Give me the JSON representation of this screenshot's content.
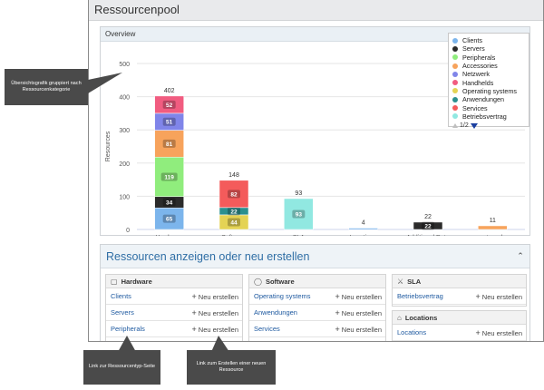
{
  "window": {
    "title": "Ressourcenpool"
  },
  "overview": {
    "title": "Overview"
  },
  "chart_data": {
    "type": "bar",
    "stacked": true,
    "ylabel": "Resources",
    "ylim": [
      0,
      500
    ],
    "yticks": [
      0,
      100,
      200,
      300,
      400,
      500
    ],
    "grid": true,
    "legend_position": "top-right",
    "categories": [
      "Hardware",
      "Software",
      "SLA",
      "Locations",
      "Additional Data",
      "externals"
    ],
    "totals": [
      402,
      148,
      93,
      4,
      22,
      11
    ],
    "series": [
      {
        "name": "Clients",
        "color": "#7cb5ec",
        "values": [
          65,
          0,
          0,
          0,
          0,
          0
        ]
      },
      {
        "name": "Servers",
        "color": "#2b2b2b",
        "values": [
          34,
          0,
          0,
          0,
          22,
          0
        ]
      },
      {
        "name": "Peripherals",
        "color": "#90ed7d",
        "values": [
          119,
          0,
          0,
          0,
          0,
          0
        ]
      },
      {
        "name": "Accessories",
        "color": "#f7a35c",
        "values": [
          81,
          0,
          0,
          0,
          0,
          11
        ]
      },
      {
        "name": "Netzwerk",
        "color": "#8085e9",
        "values": [
          51,
          0,
          0,
          0,
          0,
          0
        ]
      },
      {
        "name": "Handhelds",
        "color": "#f15c80",
        "values": [
          52,
          0,
          0,
          0,
          0,
          0
        ]
      },
      {
        "name": "Operating systems",
        "color": "#e4d354",
        "values": [
          0,
          44,
          0,
          0,
          0,
          0
        ]
      },
      {
        "name": "Anwendungen",
        "color": "#2b908f",
        "values": [
          0,
          22,
          0,
          0,
          0,
          0
        ]
      },
      {
        "name": "Services",
        "color": "#f45b5b",
        "values": [
          0,
          82,
          0,
          0,
          0,
          0
        ]
      },
      {
        "name": "Betriebsvertrag",
        "color": "#91e8e1",
        "values": [
          0,
          0,
          93,
          0,
          0,
          0
        ]
      },
      {
        "name": "",
        "color": "#7cb5ec",
        "values": [
          0,
          0,
          0,
          4,
          0,
          0
        ]
      }
    ],
    "segment_labels": [
      [
        "65",
        "34",
        "119",
        "81",
        "51",
        "52"
      ],
      [
        "44",
        "22",
        "82"
      ],
      [
        "93"
      ],
      [],
      [
        "22"
      ],
      []
    ]
  },
  "legend": {
    "items": [
      {
        "label": "Clients",
        "color": "#7cb5ec"
      },
      {
        "label": "Servers",
        "color": "#2b2b2b"
      },
      {
        "label": "Peripherals",
        "color": "#90ed7d"
      },
      {
        "label": "Accessories",
        "color": "#f7a35c"
      },
      {
        "label": "Netzwerk",
        "color": "#8085e9"
      },
      {
        "label": "Handhelds",
        "color": "#f15c80"
      },
      {
        "label": "Operating systems",
        "color": "#e4d354"
      },
      {
        "label": "Anwendungen",
        "color": "#2b908f"
      },
      {
        "label": "Services",
        "color": "#f45b5b"
      },
      {
        "label": "Betriebsvertrag",
        "color": "#91e8e1"
      }
    ],
    "pager": "1/2"
  },
  "resources": {
    "title": "Ressourcen anzeigen oder neu erstellen",
    "new_label": "Neu erstellen",
    "hardware": {
      "title": "Hardware",
      "items": [
        "Clients",
        "Servers",
        "Peripherals"
      ]
    },
    "software": {
      "title": "Software",
      "items": [
        "Operating systems",
        "Anwendungen",
        "Services"
      ]
    },
    "sla": {
      "title": "SLA",
      "items": [
        "Betriebsvertrag"
      ]
    },
    "locations": {
      "title": "Locations",
      "items": [
        "Locations"
      ]
    }
  },
  "callouts": {
    "overview": "Übersichtsgrafik gruppiert nach Ressourcenkategorie",
    "type_page": "Link zur Ressourcentyp-Seite",
    "create": "Link zum Erstellen einer neuen Ressource"
  }
}
